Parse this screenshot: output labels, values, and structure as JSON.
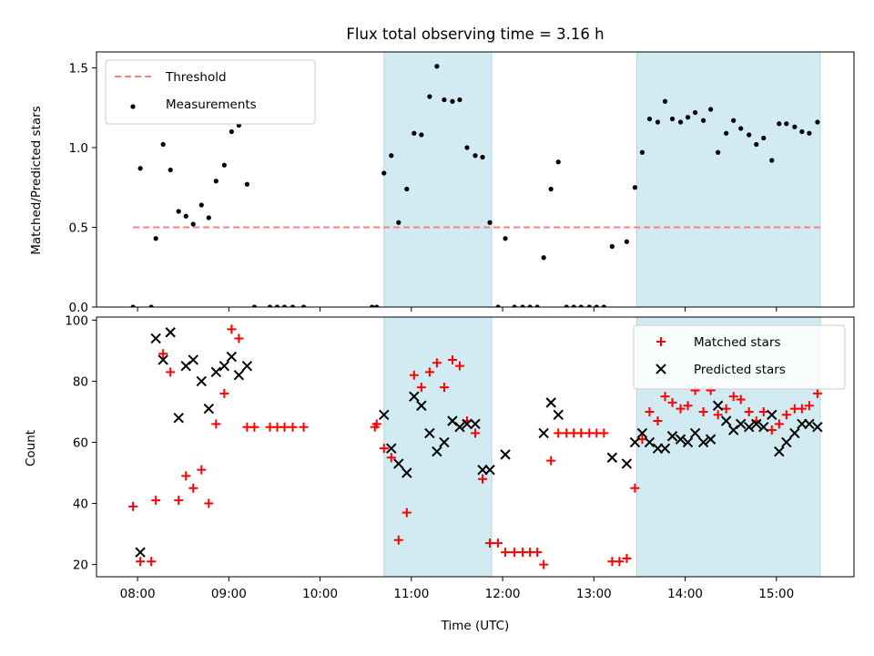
{
  "chart_data": {
    "type": "scatter",
    "title": "Flux total observing time = 3.16 h",
    "xlabel": "Time (UTC)",
    "x_unit": "hours UTC",
    "xlim": [
      7.55,
      15.85
    ],
    "x_ticks": [
      {
        "value": 8,
        "label": "08:00"
      },
      {
        "value": 9,
        "label": "09:00"
      },
      {
        "value": 10,
        "label": "10:00"
      },
      {
        "value": 11,
        "label": "11:00"
      },
      {
        "value": 12,
        "label": "12:00"
      },
      {
        "value": 13,
        "label": "13:00"
      },
      {
        "value": 14,
        "label": "14:00"
      },
      {
        "value": 15,
        "label": "15:00"
      }
    ],
    "shaded_intervals": [
      [
        10.7,
        11.88
      ],
      [
        13.47,
        15.48
      ]
    ],
    "shade_color": "#add8e6",
    "panels": [
      {
        "ylabel": "Matched/Predicted stars",
        "ylim": [
          0,
          1.6
        ],
        "y_ticks": [
          "0.0",
          "0.5",
          "1.0",
          "1.5"
        ],
        "y_tick_values": [
          0,
          0.5,
          1.0,
          1.5
        ],
        "legend_position": "top-left",
        "threshold": {
          "name": "Threshold",
          "value": 0.5,
          "x_range": [
            7.95,
            15.48
          ],
          "color": "#ff7f7f"
        },
        "series": [
          {
            "name": "Measurements",
            "marker": "dot",
            "color": "#000000",
            "points": [
              [
                7.95,
                0
              ],
              [
                8.03,
                0.87
              ],
              [
                8.15,
                0
              ],
              [
                8.2,
                0.43
              ],
              [
                8.28,
                1.02
              ],
              [
                8.36,
                0.86
              ],
              [
                8.45,
                0.6
              ],
              [
                8.53,
                0.57
              ],
              [
                8.61,
                0.52
              ],
              [
                8.7,
                0.64
              ],
              [
                8.78,
                0.56
              ],
              [
                8.86,
                0.79
              ],
              [
                8.95,
                0.89
              ],
              [
                9.03,
                1.1
              ],
              [
                9.11,
                1.14
              ],
              [
                9.2,
                0.77
              ],
              [
                9.28,
                0
              ],
              [
                9.45,
                0
              ],
              [
                9.53,
                0
              ],
              [
                9.61,
                0
              ],
              [
                9.7,
                0
              ],
              [
                9.82,
                0
              ],
              [
                10.57,
                0
              ],
              [
                10.62,
                0
              ],
              [
                10.7,
                0.84
              ],
              [
                10.78,
                0.95
              ],
              [
                10.86,
                0.53
              ],
              [
                10.95,
                0.74
              ],
              [
                11.03,
                1.09
              ],
              [
                11.11,
                1.08
              ],
              [
                11.2,
                1.32
              ],
              [
                11.28,
                1.51
              ],
              [
                11.36,
                1.3
              ],
              [
                11.45,
                1.29
              ],
              [
                11.53,
                1.3
              ],
              [
                11.61,
                1.0
              ],
              [
                11.7,
                0.95
              ],
              [
                11.78,
                0.94
              ],
              [
                11.86,
                0.53
              ],
              [
                11.95,
                0
              ],
              [
                12.03,
                0.43
              ],
              [
                12.13,
                0
              ],
              [
                12.22,
                0
              ],
              [
                12.3,
                0
              ],
              [
                12.38,
                0
              ],
              [
                12.45,
                0.31
              ],
              [
                12.53,
                0.74
              ],
              [
                12.61,
                0.91
              ],
              [
                12.7,
                0
              ],
              [
                12.78,
                0
              ],
              [
                12.86,
                0
              ],
              [
                12.95,
                0
              ],
              [
                13.03,
                0
              ],
              [
                13.11,
                0
              ],
              [
                13.2,
                0.38
              ],
              [
                13.36,
                0.41
              ],
              [
                13.45,
                0.75
              ],
              [
                13.53,
                0.97
              ],
              [
                13.61,
                1.18
              ],
              [
                13.7,
                1.16
              ],
              [
                13.78,
                1.29
              ],
              [
                13.86,
                1.18
              ],
              [
                13.95,
                1.16
              ],
              [
                14.03,
                1.19
              ],
              [
                14.11,
                1.22
              ],
              [
                14.2,
                1.17
              ],
              [
                14.28,
                1.24
              ],
              [
                14.36,
                0.97
              ],
              [
                14.45,
                1.09
              ],
              [
                14.53,
                1.17
              ],
              [
                14.61,
                1.12
              ],
              [
                14.7,
                1.08
              ],
              [
                14.78,
                1.02
              ],
              [
                14.86,
                1.06
              ],
              [
                14.95,
                0.92
              ],
              [
                15.03,
                1.15
              ],
              [
                15.11,
                1.15
              ],
              [
                15.2,
                1.13
              ],
              [
                15.28,
                1.1
              ],
              [
                15.36,
                1.09
              ],
              [
                15.45,
                1.16
              ]
            ]
          }
        ]
      },
      {
        "ylabel": "Count",
        "ylim": [
          16,
          101
        ],
        "y_ticks": [
          "20",
          "40",
          "60",
          "80",
          "100"
        ],
        "y_tick_values": [
          20,
          40,
          60,
          80,
          100
        ],
        "legend_position": "top-right",
        "series": [
          {
            "name": "Matched stars",
            "marker": "plus",
            "color": "#ff0000",
            "points": [
              [
                7.95,
                39
              ],
              [
                8.03,
                21
              ],
              [
                8.15,
                21
              ],
              [
                8.2,
                41
              ],
              [
                8.28,
                89
              ],
              [
                8.36,
                83
              ],
              [
                8.45,
                41
              ],
              [
                8.53,
                49
              ],
              [
                8.61,
                45
              ],
              [
                8.7,
                51
              ],
              [
                8.78,
                40
              ],
              [
                8.86,
                66
              ],
              [
                8.95,
                76
              ],
              [
                9.03,
                97
              ],
              [
                9.11,
                94
              ],
              [
                9.2,
                65
              ],
              [
                9.28,
                65
              ],
              [
                9.45,
                65
              ],
              [
                9.53,
                65
              ],
              [
                9.61,
                65
              ],
              [
                9.7,
                65
              ],
              [
                9.82,
                65
              ],
              [
                10.6,
                65
              ],
              [
                10.62,
                66
              ],
              [
                10.7,
                58
              ],
              [
                10.78,
                55
              ],
              [
                10.86,
                28
              ],
              [
                10.95,
                37
              ],
              [
                11.03,
                82
              ],
              [
                11.11,
                78
              ],
              [
                11.2,
                83
              ],
              [
                11.28,
                86
              ],
              [
                11.36,
                78
              ],
              [
                11.45,
                87
              ],
              [
                11.53,
                85
              ],
              [
                11.61,
                67
              ],
              [
                11.7,
                63
              ],
              [
                11.78,
                48
              ],
              [
                11.86,
                27
              ],
              [
                11.95,
                27
              ],
              [
                12.03,
                24
              ],
              [
                12.13,
                24
              ],
              [
                12.22,
                24
              ],
              [
                12.3,
                24
              ],
              [
                12.38,
                24
              ],
              [
                12.45,
                20
              ],
              [
                12.53,
                54
              ],
              [
                12.61,
                63
              ],
              [
                12.7,
                63
              ],
              [
                12.78,
                63
              ],
              [
                12.86,
                63
              ],
              [
                12.95,
                63
              ],
              [
                13.03,
                63
              ],
              [
                13.11,
                63
              ],
              [
                13.2,
                21
              ],
              [
                13.28,
                21
              ],
              [
                13.36,
                22
              ],
              [
                13.45,
                45
              ],
              [
                13.53,
                61
              ],
              [
                13.61,
                70
              ],
              [
                13.7,
                67
              ],
              [
                13.78,
                75
              ],
              [
                13.86,
                73
              ],
              [
                13.95,
                71
              ],
              [
                14.03,
                72
              ],
              [
                14.11,
                77
              ],
              [
                14.2,
                70
              ],
              [
                14.28,
                77
              ],
              [
                14.36,
                69
              ],
              [
                14.45,
                71
              ],
              [
                14.53,
                75
              ],
              [
                14.61,
                74
              ],
              [
                14.7,
                70
              ],
              [
                14.78,
                67
              ],
              [
                14.86,
                70
              ],
              [
                14.95,
                64
              ],
              [
                15.03,
                66
              ],
              [
                15.11,
                69
              ],
              [
                15.2,
                71
              ],
              [
                15.28,
                71
              ],
              [
                15.36,
                72
              ],
              [
                15.45,
                76
              ]
            ]
          },
          {
            "name": "Predicted stars",
            "marker": "x",
            "color": "#000000",
            "points": [
              [
                8.03,
                24
              ],
              [
                8.2,
                94
              ],
              [
                8.28,
                87
              ],
              [
                8.36,
                96
              ],
              [
                8.45,
                68
              ],
              [
                8.53,
                85
              ],
              [
                8.61,
                87
              ],
              [
                8.7,
                80
              ],
              [
                8.78,
                71
              ],
              [
                8.86,
                83
              ],
              [
                8.95,
                85
              ],
              [
                9.03,
                88
              ],
              [
                9.11,
                82
              ],
              [
                9.2,
                85
              ],
              [
                10.7,
                69
              ],
              [
                10.78,
                58
              ],
              [
                10.86,
                53
              ],
              [
                10.95,
                50
              ],
              [
                11.03,
                75
              ],
              [
                11.11,
                72
              ],
              [
                11.2,
                63
              ],
              [
                11.28,
                57
              ],
              [
                11.36,
                60
              ],
              [
                11.45,
                67
              ],
              [
                11.53,
                65
              ],
              [
                11.61,
                66
              ],
              [
                11.7,
                66
              ],
              [
                11.78,
                51
              ],
              [
                11.86,
                51
              ],
              [
                12.03,
                56
              ],
              [
                12.45,
                63
              ],
              [
                12.53,
                73
              ],
              [
                12.61,
                69
              ],
              [
                13.2,
                55
              ],
              [
                13.36,
                53
              ],
              [
                13.45,
                60
              ],
              [
                13.53,
                63
              ],
              [
                13.61,
                60
              ],
              [
                13.7,
                58
              ],
              [
                13.78,
                58
              ],
              [
                13.86,
                62
              ],
              [
                13.95,
                61
              ],
              [
                14.03,
                60
              ],
              [
                14.11,
                63
              ],
              [
                14.2,
                60
              ],
              [
                14.28,
                61
              ],
              [
                14.36,
                72
              ],
              [
                14.45,
                67
              ],
              [
                14.53,
                64
              ],
              [
                14.61,
                66
              ],
              [
                14.7,
                65
              ],
              [
                14.78,
                66
              ],
              [
                14.86,
                65
              ],
              [
                14.95,
                69
              ],
              [
                15.03,
                57
              ],
              [
                15.11,
                60
              ],
              [
                15.2,
                63
              ],
              [
                15.28,
                66
              ],
              [
                15.36,
                66
              ],
              [
                15.45,
                65
              ]
            ]
          }
        ]
      }
    ]
  }
}
